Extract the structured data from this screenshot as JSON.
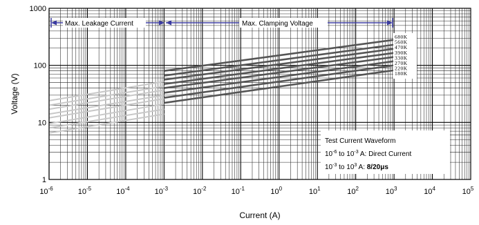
{
  "chart_data": {
    "type": "line",
    "xlabel": "Current (A)",
    "ylabel": "Voltage (V)",
    "xscale": "log",
    "yscale": "log",
    "xlim": [
      1e-06,
      100000
    ],
    "ylim": [
      1,
      1000
    ],
    "grid": true,
    "x_ticks": [
      {
        "base": "10",
        "exp": "-6"
      },
      {
        "base": "10",
        "exp": "-5"
      },
      {
        "base": "10",
        "exp": "-4"
      },
      {
        "base": "10",
        "exp": "-3"
      },
      {
        "base": "10",
        "exp": "-2"
      },
      {
        "base": "10",
        "exp": "-1"
      },
      {
        "base": "10",
        "exp": "0"
      },
      {
        "base": "10",
        "exp": "1"
      },
      {
        "base": "10",
        "exp": "2"
      },
      {
        "base": "10",
        "exp": "3"
      },
      {
        "base": "10",
        "exp": "4"
      },
      {
        "base": "10",
        "exp": "5"
      }
    ],
    "y_ticks": [
      "1",
      "10",
      "100",
      "1000"
    ],
    "annotations": {
      "leakage": "Max. Leakage Current",
      "clamping": "Max. Clamping Voltage"
    },
    "test_box": {
      "title": "Test Current Waveform",
      "line2_pre": "10",
      "line2_exp1": "-6",
      "line2_mid": " to 10",
      "line2_exp2": "-3",
      "line2_post": " A: Direct Current",
      "line3_pre": "10",
      "line3_exp1": "-3",
      "line3_mid": " to 10",
      "line3_exp2": "3",
      "line3_post": " A: ",
      "line3_bold": "8/20μs"
    },
    "colors": {
      "leakage": "#c8c8c8",
      "clamping": "#555555",
      "arrow": "#3a3aa0"
    },
    "series": [
      {
        "name": "680K",
        "leakage_x": [
          1e-06,
          0.001
        ],
        "leakage_y": [
          24,
          52
        ],
        "clamp_x": [
          0.001,
          1000
        ],
        "clamp_y": [
          80,
          280
        ]
      },
      {
        "name": "560K",
        "leakage_x": [
          1e-06,
          0.001
        ],
        "leakage_y": [
          20,
          43
        ],
        "clamp_x": [
          0.001,
          1000
        ],
        "clamp_y": [
          66,
          230
        ]
      },
      {
        "name": "470K",
        "leakage_x": [
          1e-06,
          0.001
        ],
        "leakage_y": [
          17,
          37
        ],
        "clamp_x": [
          0.001,
          1000
        ],
        "clamp_y": [
          56,
          195
        ]
      },
      {
        "name": "390K",
        "leakage_x": [
          1e-06,
          0.001
        ],
        "leakage_y": [
          14,
          30
        ],
        "clamp_x": [
          0.001,
          1000
        ],
        "clamp_y": [
          47,
          165
        ]
      },
      {
        "name": "330K",
        "leakage_x": [
          1e-06,
          0.001
        ],
        "leakage_y": [
          12,
          26
        ],
        "clamp_x": [
          0.001,
          1000
        ],
        "clamp_y": [
          40,
          140
        ]
      },
      {
        "name": "270K",
        "leakage_x": [
          1e-06,
          0.001
        ],
        "leakage_y": [
          9.5,
          21
        ],
        "clamp_x": [
          0.001,
          1000
        ],
        "clamp_y": [
          33,
          118
        ]
      },
      {
        "name": "220K",
        "leakage_x": [
          1e-06,
          0.001
        ],
        "leakage_y": [
          8,
          17
        ],
        "clamp_x": [
          0.001,
          1000
        ],
        "clamp_y": [
          27,
          100
        ]
      },
      {
        "name": "180K",
        "leakage_x": [
          1e-06,
          0.001
        ],
        "leakage_y": [
          6.5,
          14
        ],
        "clamp_x": [
          0.001,
          1000
        ],
        "clamp_y": [
          22,
          82
        ]
      }
    ]
  }
}
